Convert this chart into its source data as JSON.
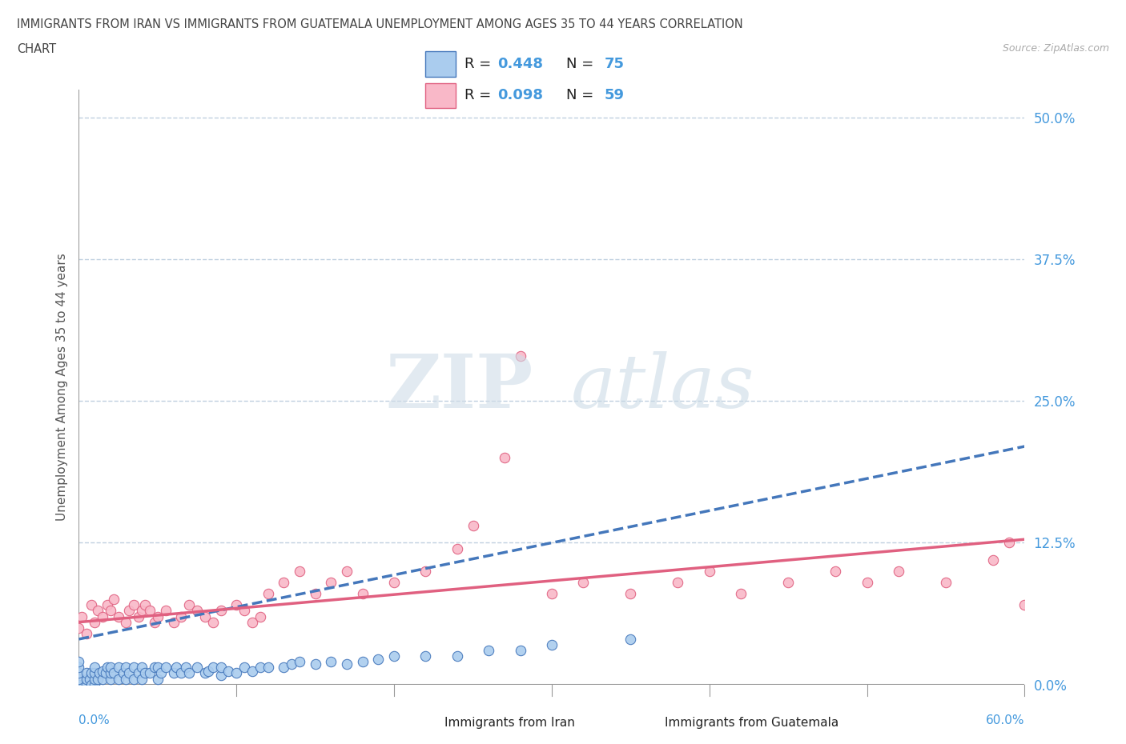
{
  "title_line1": "IMMIGRANTS FROM IRAN VS IMMIGRANTS FROM GUATEMALA UNEMPLOYMENT AMONG AGES 35 TO 44 YEARS CORRELATION",
  "title_line2": "CHART",
  "source_text": "Source: ZipAtlas.com",
  "ylabel": "Unemployment Among Ages 35 to 44 years",
  "xmin": 0.0,
  "xmax": 0.6,
  "ymin": 0.0,
  "ymax": 0.525,
  "yticks": [
    0.0,
    0.125,
    0.25,
    0.375,
    0.5
  ],
  "ytick_labels": [
    "0.0%",
    "12.5%",
    "25.0%",
    "37.5%",
    "50.0%"
  ],
  "xtick_bottom_left": "0.0%",
  "xtick_bottom_right": "60.0%",
  "iran_color": "#aaccee",
  "iran_color_dark": "#4477bb",
  "guatemala_color": "#f9b8c8",
  "guatemala_color_dark": "#e06080",
  "iran_R": 0.448,
  "iran_N": 75,
  "guatemala_R": 0.098,
  "guatemala_N": 59,
  "legend_label_iran": "Immigrants from Iran",
  "legend_label_guatemala": "Immigrants from Guatemala",
  "watermark_zip": "ZIP",
  "watermark_atlas": "atlas",
  "background_color": "#ffffff",
  "grid_color": "#c0d0e0",
  "axis_color": "#999999",
  "right_label_color": "#4499dd",
  "title_color": "#444444",
  "iran_trend_x0": 0.0,
  "iran_trend_y0": 0.04,
  "iran_trend_x1": 0.6,
  "iran_trend_y1": 0.21,
  "guatemala_trend_x0": 0.0,
  "guatemala_trend_y0": 0.055,
  "guatemala_trend_x1": 0.6,
  "guatemala_trend_y1": 0.128,
  "iran_scatter_x": [
    0.0,
    0.0,
    0.0,
    0.0,
    0.0,
    0.005,
    0.005,
    0.005,
    0.007,
    0.008,
    0.008,
    0.01,
    0.01,
    0.01,
    0.01,
    0.012,
    0.013,
    0.015,
    0.015,
    0.017,
    0.018,
    0.02,
    0.02,
    0.02,
    0.022,
    0.025,
    0.025,
    0.028,
    0.03,
    0.03,
    0.032,
    0.035,
    0.035,
    0.038,
    0.04,
    0.04,
    0.042,
    0.045,
    0.048,
    0.05,
    0.05,
    0.052,
    0.055,
    0.06,
    0.062,
    0.065,
    0.068,
    0.07,
    0.075,
    0.08,
    0.082,
    0.085,
    0.09,
    0.09,
    0.095,
    0.1,
    0.105,
    0.11,
    0.115,
    0.12,
    0.13,
    0.135,
    0.14,
    0.15,
    0.16,
    0.17,
    0.18,
    0.19,
    0.2,
    0.22,
    0.24,
    0.26,
    0.28,
    0.3,
    0.35
  ],
  "iran_scatter_y": [
    0.0,
    0.005,
    0.01,
    0.015,
    0.02,
    0.0,
    0.005,
    0.01,
    0.005,
    0.0,
    0.01,
    0.0,
    0.005,
    0.01,
    0.015,
    0.005,
    0.01,
    0.005,
    0.012,
    0.01,
    0.015,
    0.005,
    0.01,
    0.015,
    0.01,
    0.005,
    0.015,
    0.01,
    0.005,
    0.015,
    0.01,
    0.005,
    0.015,
    0.01,
    0.005,
    0.015,
    0.01,
    0.01,
    0.015,
    0.005,
    0.015,
    0.01,
    0.015,
    0.01,
    0.015,
    0.01,
    0.015,
    0.01,
    0.015,
    0.01,
    0.012,
    0.015,
    0.008,
    0.015,
    0.012,
    0.01,
    0.015,
    0.012,
    0.015,
    0.015,
    0.015,
    0.018,
    0.02,
    0.018,
    0.02,
    0.018,
    0.02,
    0.022,
    0.025,
    0.025,
    0.025,
    0.03,
    0.03,
    0.035,
    0.04
  ],
  "guatemala_scatter_x": [
    0.0,
    0.002,
    0.005,
    0.008,
    0.01,
    0.012,
    0.015,
    0.018,
    0.02,
    0.022,
    0.025,
    0.03,
    0.032,
    0.035,
    0.038,
    0.04,
    0.042,
    0.045,
    0.048,
    0.05,
    0.055,
    0.06,
    0.065,
    0.07,
    0.075,
    0.08,
    0.085,
    0.09,
    0.1,
    0.105,
    0.11,
    0.115,
    0.12,
    0.13,
    0.14,
    0.15,
    0.16,
    0.17,
    0.18,
    0.2,
    0.22,
    0.24,
    0.25,
    0.27,
    0.28,
    0.3,
    0.32,
    0.35,
    0.38,
    0.4,
    0.42,
    0.45,
    0.48,
    0.5,
    0.52,
    0.55,
    0.58,
    0.59,
    0.6
  ],
  "guatemala_scatter_y": [
    0.05,
    0.06,
    0.045,
    0.07,
    0.055,
    0.065,
    0.06,
    0.07,
    0.065,
    0.075,
    0.06,
    0.055,
    0.065,
    0.07,
    0.06,
    0.065,
    0.07,
    0.065,
    0.055,
    0.06,
    0.065,
    0.055,
    0.06,
    0.07,
    0.065,
    0.06,
    0.055,
    0.065,
    0.07,
    0.065,
    0.055,
    0.06,
    0.08,
    0.09,
    0.1,
    0.08,
    0.09,
    0.1,
    0.08,
    0.09,
    0.1,
    0.12,
    0.14,
    0.2,
    0.29,
    0.08,
    0.09,
    0.08,
    0.09,
    0.1,
    0.08,
    0.09,
    0.1,
    0.09,
    0.1,
    0.09,
    0.11,
    0.125,
    0.07
  ]
}
